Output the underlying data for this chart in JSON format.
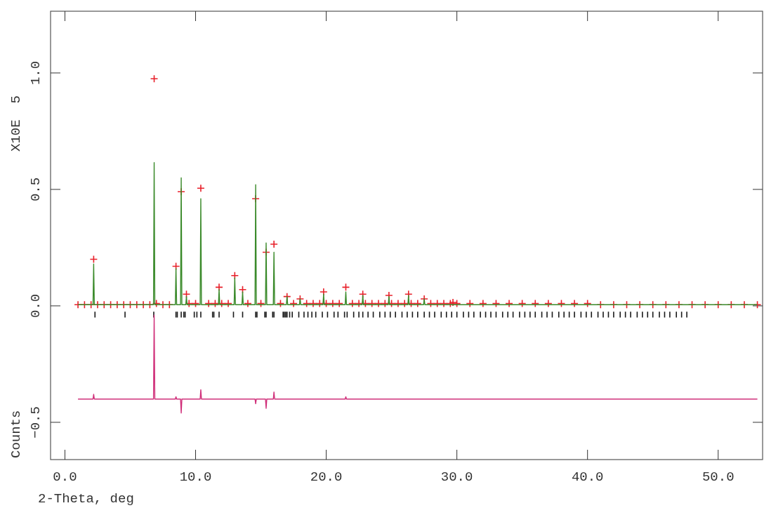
{
  "chart_data": {
    "type": "scatter",
    "xlabel": "2-Theta, deg",
    "ylabel": "Counts",
    "annotations": [
      "X10E  5"
    ],
    "xlim": [
      -1.1,
      53.4
    ],
    "ylim": [
      -0.66,
      1.265
    ],
    "xticks": [
      {
        "value": 0,
        "label": "0.0"
      },
      {
        "value": 10,
        "label": "10.0"
      },
      {
        "value": 20,
        "label": "20.0"
      },
      {
        "value": 30,
        "label": "30.0"
      },
      {
        "value": 40,
        "label": "40.0"
      },
      {
        "value": 50,
        "label": "50.0"
      }
    ],
    "yticks": [
      {
        "value": -0.5,
        "label": "−0.5"
      },
      {
        "value": 0,
        "label": "0.0"
      },
      {
        "value": 0.5,
        "label": "0.5"
      },
      {
        "value": 1,
        "label": "1.0"
      }
    ],
    "grid": false,
    "series": [
      {
        "type": "bar",
        "color": "#1a1a1a",
        "base": [
          -0.05,
          -0.05,
          -0.05,
          -0.05,
          -0.05,
          -0.05,
          -0.05,
          -0.05,
          -0.05,
          -0.05,
          -0.05,
          -0.05,
          -0.05,
          -0.05,
          -0.05,
          -0.05,
          -0.05,
          -0.05,
          -0.05,
          -0.05,
          -0.05,
          -0.05,
          -0.05,
          -0.05,
          -0.05,
          -0.05,
          -0.05,
          -0.05,
          -0.05,
          -0.05,
          -0.05,
          -0.05,
          -0.05,
          -0.05,
          -0.05,
          -0.05,
          -0.05,
          -0.05,
          -0.05,
          -0.05,
          -0.05,
          -0.05,
          -0.05,
          -0.05,
          -0.05,
          -0.05,
          -0.05,
          -0.05,
          -0.05,
          -0.05,
          -0.05,
          -0.05,
          -0.05,
          -0.05,
          -0.05,
          -0.05,
          -0.05,
          -0.05,
          -0.05,
          -0.05,
          -0.05,
          -0.05,
          -0.05,
          -0.05,
          -0.05,
          -0.05,
          -0.05,
          -0.05,
          -0.05,
          -0.05,
          -0.05,
          -0.05,
          -0.05,
          -0.05,
          -0.05,
          -0.05,
          -0.05,
          -0.05,
          -0.05,
          -0.05,
          -0.05,
          -0.05,
          -0.05,
          -0.05,
          -0.05,
          -0.05,
          -0.05,
          -0.05,
          -0.05,
          -0.05,
          -0.05,
          -0.05,
          -0.05,
          -0.05,
          -0.05,
          -0.05,
          -0.05,
          -0.05,
          -0.05,
          -0.05
        ],
        "x": [
          2.3,
          4.6,
          6.8,
          8.5,
          8.6,
          8.9,
          9.1,
          9.2,
          9.9,
          10.1,
          10.4,
          11.3,
          11.4,
          11.8,
          12.9,
          13.6,
          14.6,
          14.7,
          15.3,
          15.4,
          15.9,
          16.0,
          16.7,
          16.8,
          16.9,
          17.0,
          17.2,
          17.4,
          17.9,
          18.3,
          18.6,
          18.9,
          19.2,
          19.7,
          20.1,
          20.6,
          20.9,
          21.4,
          21.6,
          22.1,
          22.5,
          22.8,
          23.2,
          23.6,
          24.1,
          24.5,
          24.9,
          25.3,
          25.8,
          26.2,
          26.6,
          27.0,
          27.5,
          27.9,
          28.3,
          28.8,
          29.2,
          29.6,
          30.0,
          30.5,
          30.9,
          31.3,
          31.8,
          32.2,
          32.6,
          33.0,
          33.5,
          33.9,
          34.3,
          34.8,
          35.2,
          35.6,
          36.0,
          36.5,
          36.9,
          37.3,
          37.8,
          38.2,
          38.6,
          39.0,
          39.5,
          39.9,
          40.3,
          40.8,
          41.2,
          41.6,
          42.0,
          42.5,
          42.9,
          43.3,
          43.8,
          44.2,
          44.6,
          45.0,
          45.5,
          45.9,
          46.3,
          46.8,
          47.2,
          47.6
        ],
        "values": [
          0.025,
          0.025,
          0.025,
          0.025,
          0.025,
          0.025,
          0.025,
          0.025,
          0.025,
          0.025,
          0.025,
          0.025,
          0.025,
          0.025,
          0.025,
          0.025,
          0.025,
          0.025,
          0.025,
          0.025,
          0.025,
          0.025,
          0.025,
          0.025,
          0.025,
          0.025,
          0.025,
          0.025,
          0.025,
          0.025,
          0.025,
          0.025,
          0.025,
          0.025,
          0.025,
          0.025,
          0.025,
          0.025,
          0.025,
          0.025,
          0.025,
          0.025,
          0.025,
          0.025,
          0.025,
          0.025,
          0.025,
          0.025,
          0.025,
          0.025,
          0.025,
          0.025,
          0.025,
          0.025,
          0.025,
          0.025,
          0.025,
          0.025,
          0.025,
          0.025,
          0.025,
          0.025,
          0.025,
          0.025,
          0.025,
          0.025,
          0.025,
          0.025,
          0.025,
          0.025,
          0.025,
          0.025,
          0.025,
          0.025,
          0.025,
          0.025,
          0.025,
          0.025,
          0.025,
          0.025,
          0.025,
          0.025,
          0.025,
          0.025,
          0.025,
          0.025,
          0.025,
          0.025,
          0.025,
          0.025,
          0.025,
          0.025,
          0.025,
          0.025,
          0.025,
          0.025,
          0.025,
          0.025,
          0.025,
          0.025
        ]
      },
      {
        "type": "line",
        "color": "#3a8a2a",
        "x": [
          1,
          2.15,
          2.2,
          2.25,
          6.78,
          6.83,
          6.88,
          8.45,
          8.5,
          8.55,
          8.85,
          8.9,
          8.95,
          9.25,
          9.3,
          9.35,
          10.35,
          10.4,
          10.45,
          11.75,
          11.8,
          11.85,
          12.95,
          13.0,
          13.05,
          13.55,
          13.6,
          13.65,
          14.55,
          14.6,
          14.65,
          15.35,
          15.4,
          15.45,
          15.95,
          16.0,
          16.05,
          16.95,
          17.0,
          17.05,
          17.95,
          18.0,
          18.05,
          19.75,
          19.8,
          19.85,
          21.45,
          21.5,
          21.55,
          22.75,
          22.8,
          22.85,
          24.75,
          24.8,
          24.85,
          26.25,
          26.3,
          26.35,
          27.45,
          27.5,
          27.55,
          53
        ],
        "values": [
          0.005,
          0.005,
          0.18,
          0.005,
          0.005,
          0.615,
          0.005,
          0.005,
          0.16,
          0.005,
          0.005,
          0.55,
          0.005,
          0.005,
          0.04,
          0.005,
          0.005,
          0.46,
          0.005,
          0.005,
          0.07,
          0.005,
          0.005,
          0.12,
          0.005,
          0.005,
          0.06,
          0.005,
          0.005,
          0.52,
          0.005,
          0.005,
          0.27,
          0.005,
          0.005,
          0.23,
          0.005,
          0.005,
          0.04,
          0.005,
          0.005,
          0.03,
          0.005,
          0.005,
          0.05,
          0.005,
          0.005,
          0.06,
          0.005,
          0.005,
          0.045,
          0.005,
          0.005,
          0.04,
          0.005,
          0.005,
          0.045,
          0.005,
          0.005,
          0.03,
          0.005,
          0.005
        ]
      },
      {
        "marker": "cross",
        "color": "#e8202a",
        "x": [
          1,
          1.5,
          2,
          2.2,
          2.5,
          3,
          3.5,
          4,
          4.5,
          5,
          5.5,
          6,
          6.5,
          6.83,
          7,
          7.5,
          8,
          8.5,
          8.9,
          9.3,
          9.5,
          10,
          10.4,
          11,
          11.5,
          11.8,
          12,
          12.5,
          13,
          13.6,
          14,
          14.6,
          15,
          15.4,
          16,
          16.5,
          17,
          17.5,
          18,
          18.5,
          19,
          19.5,
          19.8,
          20,
          20.5,
          21,
          21.5,
          22,
          22.5,
          22.8,
          23,
          23.5,
          24,
          24.5,
          24.8,
          25,
          25.5,
          26,
          26.3,
          26.5,
          27,
          27.5,
          28,
          28.5,
          29,
          29.5,
          29.7,
          30,
          31,
          32,
          33,
          34,
          35,
          36,
          37,
          38,
          39,
          40,
          41,
          42,
          43,
          44,
          45,
          46,
          47,
          48,
          49,
          50,
          51,
          52,
          53
        ],
        "values": [
          0.005,
          0.005,
          0.005,
          0.2,
          0.005,
          0.005,
          0.005,
          0.005,
          0.005,
          0.005,
          0.005,
          0.005,
          0.005,
          0.975,
          0.01,
          0.005,
          0.005,
          0.17,
          0.49,
          0.05,
          0.01,
          0.01,
          0.505,
          0.01,
          0.01,
          0.08,
          0.01,
          0.01,
          0.13,
          0.07,
          0.01,
          0.46,
          0.01,
          0.23,
          0.265,
          0.01,
          0.04,
          0.01,
          0.03,
          0.01,
          0.01,
          0.01,
          0.06,
          0.01,
          0.01,
          0.01,
          0.08,
          0.01,
          0.01,
          0.05,
          0.01,
          0.01,
          0.01,
          0.01,
          0.045,
          0.01,
          0.01,
          0.01,
          0.05,
          0.01,
          0.01,
          0.03,
          0.01,
          0.01,
          0.01,
          0.01,
          0.015,
          0.01,
          0.01,
          0.01,
          0.01,
          0.01,
          0.01,
          0.01,
          0.01,
          0.01,
          0.01,
          0.01,
          0.005,
          0.005,
          0.005,
          0.005,
          0.005,
          0.005,
          0.005,
          0.005,
          0.005,
          0.005,
          0.005,
          0.005,
          0.005
        ]
      },
      {
        "type": "line",
        "color": "#d0307a",
        "x": [
          1,
          2.15,
          2.2,
          2.25,
          6.78,
          6.83,
          6.88,
          8.45,
          8.5,
          8.55,
          8.85,
          8.9,
          8.95,
          10.35,
          10.4,
          10.45,
          14.55,
          14.6,
          14.65,
          15.35,
          15.4,
          15.45,
          15.95,
          16.0,
          16.05,
          21.45,
          21.5,
          21.55,
          53
        ],
        "values": [
          -0.4,
          -0.4,
          -0.38,
          -0.4,
          -0.4,
          -0.04,
          -0.4,
          -0.4,
          -0.39,
          -0.4,
          -0.4,
          -0.46,
          -0.4,
          -0.4,
          -0.36,
          -0.4,
          -0.4,
          -0.42,
          -0.4,
          -0.4,
          -0.44,
          -0.4,
          -0.4,
          -0.37,
          -0.4,
          -0.4,
          -0.39,
          -0.4,
          -0.4
        ]
      }
    ]
  }
}
